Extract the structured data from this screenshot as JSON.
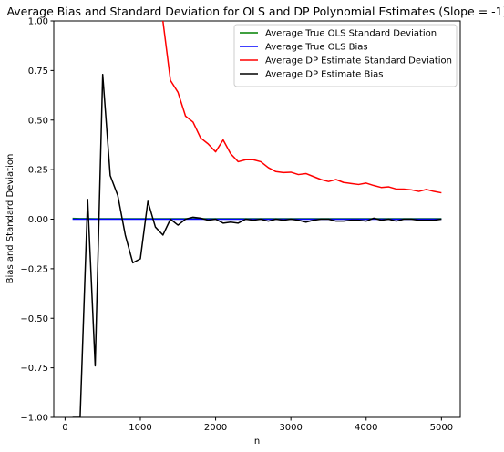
{
  "chart_data": {
    "type": "line",
    "title": "Average Bias and Standard Deviation for OLS and DP Polynomial Estimates (Slope = -1)",
    "xlabel": "n",
    "ylabel": "Bias and Standard Deviation",
    "xlim": [
      -150,
      5250
    ],
    "ylim": [
      -1.0,
      1.0
    ],
    "xticks": [
      0,
      1000,
      2000,
      3000,
      4000,
      5000
    ],
    "xtick_labels": [
      "0",
      "1000",
      "2000",
      "3000",
      "4000",
      "5000"
    ],
    "yticks": [
      -1.0,
      -0.75,
      -0.5,
      -0.25,
      0.0,
      0.25,
      0.5,
      0.75,
      1.0
    ],
    "ytick_labels": [
      "−1.00",
      "−0.75",
      "−0.50",
      "−0.25",
      "0.00",
      "0.25",
      "0.50",
      "0.75",
      "1.00"
    ],
    "grid": false,
    "legend_position": "top-right",
    "x": [
      100,
      200,
      300,
      400,
      500,
      600,
      700,
      800,
      900,
      1000,
      1100,
      1200,
      1300,
      1400,
      1500,
      1600,
      1700,
      1800,
      1900,
      2000,
      2100,
      2200,
      2300,
      2400,
      2500,
      2600,
      2700,
      2800,
      2900,
      3000,
      3100,
      3200,
      3300,
      3400,
      3500,
      3600,
      3700,
      3800,
      3900,
      4000,
      4100,
      4200,
      4300,
      4400,
      4500,
      4600,
      4700,
      4800,
      4900,
      5000
    ],
    "series": [
      {
        "name": "Average True OLS Standard Deviation",
        "color": "#008000",
        "values": [
          0.004,
          0.003,
          0.003,
          0.002,
          0.002,
          0.002,
          0.002,
          0.002,
          0.002,
          0.002,
          0.002,
          0.002,
          0.002,
          0.002,
          0.002,
          0.002,
          0.002,
          0.002,
          0.002,
          0.002,
          0.002,
          0.002,
          0.002,
          0.002,
          0.002,
          0.002,
          0.002,
          0.002,
          0.002,
          0.002,
          0.002,
          0.002,
          0.002,
          0.002,
          0.002,
          0.002,
          0.002,
          0.002,
          0.002,
          0.002,
          0.002,
          0.002,
          0.002,
          0.002,
          0.002,
          0.002,
          0.002,
          0.002,
          0.002,
          0.002
        ]
      },
      {
        "name": "Average True OLS Bias",
        "color": "#0000ff",
        "values": [
          0.0,
          0.0,
          0.0,
          0.0,
          0.0,
          0.0,
          0.0,
          0.0,
          0.0,
          0.0,
          0.0,
          0.0,
          0.0,
          0.0,
          0.0,
          0.0,
          0.0,
          0.0,
          0.0,
          0.0,
          0.0,
          0.0,
          0.0,
          0.0,
          0.0,
          0.0,
          0.0,
          0.0,
          0.0,
          0.0,
          0.0,
          0.0,
          0.0,
          0.0,
          0.0,
          0.0,
          0.0,
          0.0,
          0.0,
          0.0,
          0.0,
          0.0,
          0.0,
          0.0,
          0.0,
          0.0,
          0.0,
          0.0,
          0.0,
          0.0
        ]
      },
      {
        "name": "Average DP Estimate Standard Deviation",
        "color": "#ff0000",
        "values": [
          null,
          null,
          null,
          null,
          null,
          null,
          null,
          null,
          null,
          null,
          null,
          1.25,
          1.0,
          0.7,
          0.64,
          0.52,
          0.49,
          0.41,
          0.38,
          0.34,
          0.4,
          0.33,
          0.29,
          0.3,
          0.3,
          0.29,
          0.26,
          0.24,
          0.235,
          0.237,
          0.225,
          0.23,
          0.215,
          0.2,
          0.19,
          0.2,
          0.185,
          0.18,
          0.175,
          0.182,
          0.17,
          0.16,
          0.163,
          0.152,
          0.152,
          0.148,
          0.14,
          0.15,
          0.14,
          0.133
        ]
      },
      {
        "name": "Average DP Estimate Bias",
        "color": "#000000",
        "values": [
          -1.0,
          -1.0,
          0.1,
          -0.74,
          0.73,
          0.22,
          0.12,
          -0.08,
          -0.22,
          -0.2,
          0.09,
          -0.04,
          -0.08,
          0.0,
          -0.03,
          0.0,
          0.01,
          0.005,
          -0.005,
          0.0,
          -0.02,
          -0.015,
          -0.02,
          0.0,
          -0.005,
          0.0,
          -0.01,
          0.0,
          -0.005,
          0.0,
          -0.005,
          -0.015,
          -0.005,
          0.0,
          0.0,
          -0.01,
          -0.01,
          -0.005,
          -0.005,
          -0.01,
          0.005,
          -0.005,
          0.0,
          -0.01,
          0.0,
          0.0,
          -0.005,
          -0.005,
          -0.005,
          0.0
        ]
      }
    ]
  }
}
